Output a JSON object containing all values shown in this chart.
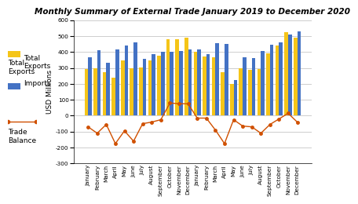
{
  "title": "Monthly Summary of External Trade January 2019 to December 2020",
  "ylabel": "USD Millions",
  "months_2019": [
    "January",
    "February",
    "March",
    "April",
    "May",
    "June",
    "July",
    "August",
    "September",
    "October",
    "November",
    "December"
  ],
  "months_2020": [
    "January",
    "February",
    "March",
    "April",
    "May",
    "June",
    "July",
    "August",
    "September",
    "October",
    "November",
    "December"
  ],
  "exports_2019": [
    295,
    300,
    275,
    240,
    345,
    300,
    305,
    345,
    375,
    480,
    480,
    490
  ],
  "imports_2019": [
    365,
    410,
    330,
    415,
    440,
    460,
    355,
    385,
    400,
    400,
    405,
    415
  ],
  "exports_2020": [
    400,
    370,
    365,
    275,
    200,
    300,
    290,
    295,
    390,
    440,
    525,
    490
  ],
  "imports_2020": [
    415,
    385,
    455,
    450,
    225,
    365,
    360,
    405,
    445,
    460,
    510,
    530
  ],
  "trade_balance_2019": [
    -70,
    -110,
    -55,
    -175,
    -95,
    -160,
    -50,
    -40,
    -25,
    80,
    75,
    75
  ],
  "trade_balance_2020": [
    -15,
    -15,
    -90,
    -175,
    -25,
    -65,
    -70,
    -110,
    -55,
    -20,
    15,
    -40
  ],
  "bar_color_exports": "#F5C518",
  "bar_color_imports": "#4472C4",
  "line_color_trade": "#D05000",
  "ylim_min": -300,
  "ylim_max": 600,
  "yticks": [
    -300,
    -200,
    -100,
    0,
    100,
    200,
    300,
    400,
    500,
    600
  ],
  "background_color": "#FFFFFF",
  "grid_color": "#BBBBBB",
  "title_fontsize": 7.5,
  "axis_label_fontsize": 6.5,
  "tick_fontsize": 5.2,
  "legend_fontsize": 6.5
}
